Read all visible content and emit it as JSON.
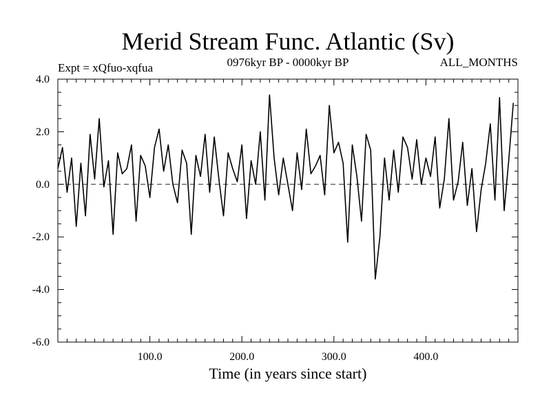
{
  "chart_data": {
    "type": "line",
    "title": "Merid Stream Func. Atlantic (Sv)",
    "subtitle_left": "Expt = xQfuo-xqfua",
    "subtitle_center": "0976kyr BP - 0000kyr BP",
    "subtitle_right": "ALL_MONTHS",
    "xlabel": "Time (in years since start)",
    "ylabel": "",
    "xlim": [
      0,
      500
    ],
    "ylim": [
      -6.0,
      4.0
    ],
    "x_ticks": [
      100,
      200,
      300,
      400
    ],
    "x_tick_labels": [
      "100.0",
      "200.0",
      "300.0",
      "400.0"
    ],
    "y_ticks": [
      -6,
      -4,
      -2,
      0,
      2,
      4
    ],
    "y_tick_labels": [
      "-6.0",
      "-4.0",
      "-2.0",
      "0.0",
      "2.0",
      "4.0"
    ],
    "zero_line": "dashed",
    "series": [
      {
        "name": "Merid Stream Func. Atlantic",
        "x_start": 0,
        "x_step": 5,
        "values": [
          0.6,
          1.4,
          -0.3,
          1.0,
          -1.6,
          0.8,
          -1.2,
          1.9,
          0.2,
          2.5,
          -0.1,
          0.9,
          -1.9,
          1.2,
          0.4,
          0.6,
          1.5,
          -1.4,
          1.1,
          0.7,
          -0.5,
          1.4,
          2.1,
          0.5,
          1.5,
          0.0,
          -0.7,
          1.3,
          0.8,
          -1.9,
          1.1,
          0.3,
          1.9,
          -0.3,
          1.8,
          0.2,
          -1.2,
          1.2,
          0.6,
          0.1,
          1.5,
          -1.3,
          0.9,
          0.0,
          2.0,
          -0.6,
          3.4,
          1.0,
          -0.4,
          1.0,
          0.0,
          -1.0,
          1.2,
          -0.2,
          2.1,
          0.4,
          0.7,
          1.1,
          -0.4,
          3.0,
          1.2,
          1.6,
          0.8,
          -2.2,
          1.5,
          0.3,
          -1.4,
          1.9,
          1.3,
          -3.6,
          -2.0,
          1.0,
          -0.6,
          1.3,
          -0.3,
          1.8,
          1.4,
          0.2,
          1.7,
          0.0,
          1.0,
          0.3,
          1.8,
          -0.9,
          0.2,
          2.5,
          -0.6,
          0.1,
          1.6,
          -0.8,
          0.6,
          -1.8,
          -0.2,
          0.8,
          2.3,
          -0.6,
          3.3,
          -1.0,
          0.9,
          3.1
        ]
      }
    ]
  }
}
